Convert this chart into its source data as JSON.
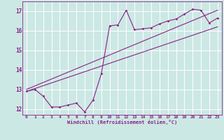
{
  "xlabel": "Windchill (Refroidissement éolien,°C)",
  "bg_color": "#cce8e4",
  "grid_color": "#aad8d2",
  "line_color": "#882288",
  "xlim": [
    -0.5,
    23.5
  ],
  "ylim": [
    11.7,
    17.5
  ],
  "xticks": [
    0,
    1,
    2,
    3,
    4,
    5,
    6,
    7,
    8,
    9,
    10,
    11,
    12,
    13,
    14,
    15,
    16,
    17,
    18,
    19,
    20,
    21,
    22,
    23
  ],
  "yticks": [
    12,
    13,
    14,
    15,
    16,
    17
  ],
  "line1_x": [
    0,
    1,
    2,
    3,
    4,
    5,
    6,
    7,
    8,
    9,
    10,
    11,
    12,
    13,
    14,
    15,
    16,
    17,
    18,
    19,
    20,
    21,
    22,
    23
  ],
  "line1_y": [
    12.9,
    13.0,
    12.65,
    12.1,
    12.1,
    12.2,
    12.3,
    11.85,
    12.45,
    13.8,
    16.25,
    16.3,
    17.05,
    16.05,
    16.1,
    16.15,
    16.35,
    16.5,
    16.6,
    16.85,
    17.1,
    17.05,
    16.4,
    16.65
  ],
  "line2_x": [
    0,
    23
  ],
  "line2_y": [
    12.9,
    16.2
  ],
  "line3_x": [
    0,
    23
  ],
  "line3_y": [
    13.0,
    17.05
  ]
}
